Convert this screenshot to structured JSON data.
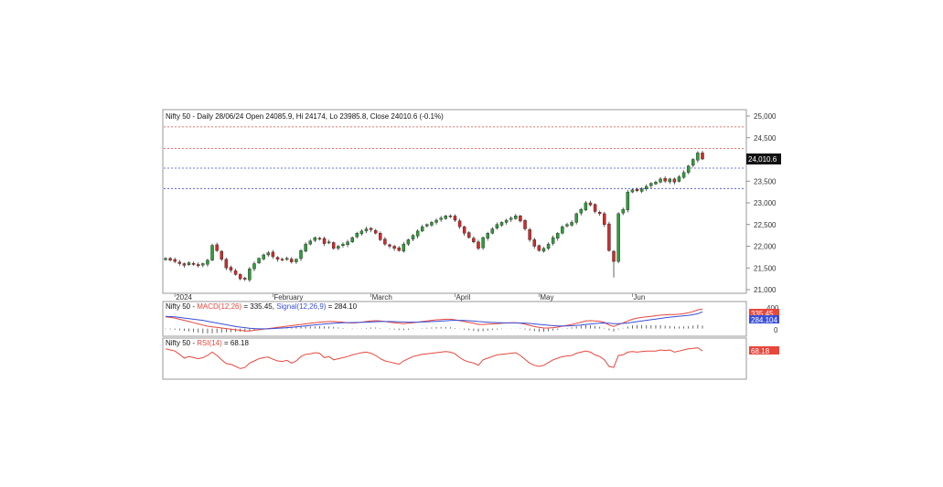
{
  "chart_data": [
    {
      "type": "candlestick",
      "header": "Nifty 50 - Daily 28/06/24 Open 24085.9, Hi 24174, Lo 23985.8, Close 24010.6 (-0.1%)",
      "y_ticks": [
        "25,000",
        "24,500",
        "24,000",
        "23,500",
        "23,000",
        "22,500",
        "22,000",
        "21,500",
        "21,000"
      ],
      "ylim": [
        21000,
        25000
      ],
      "x_labels": [
        "2024",
        "February",
        "March",
        "April",
        "May",
        "Jun"
      ],
      "last_price_label": "24,010.6",
      "reference_lines": [
        {
          "value": 24750,
          "color": "#e8473c",
          "style": "dashed"
        },
        {
          "value": 24250,
          "color": "#e8473c",
          "style": "dashed"
        },
        {
          "value": 23800,
          "color": "#3a4fd8",
          "style": "dashed"
        },
        {
          "value": 23330,
          "color": "#3a4fd8",
          "style": "dashed"
        }
      ],
      "up_color": "#2e9e3a",
      "down_color": "#d42a2a",
      "close_series": [
        21720,
        21680,
        21650,
        21600,
        21560,
        21620,
        21580,
        21550,
        21600,
        21680,
        22020,
        21900,
        21700,
        21500,
        21450,
        21350,
        21250,
        21240,
        21480,
        21600,
        21720,
        21800,
        21850,
        21760,
        21700,
        21680,
        21720,
        21640,
        21700,
        21900,
        22050,
        22120,
        22200,
        22180,
        22060,
        22100,
        21950,
        22000,
        22050,
        22100,
        22200,
        22300,
        22350,
        22400,
        22380,
        22300,
        22150,
        22050,
        22000,
        21950,
        21900,
        22050,
        22150,
        22250,
        22350,
        22450,
        22500,
        22550,
        22600,
        22650,
        22700,
        22680,
        22600,
        22450,
        22300,
        22200,
        22100,
        21950,
        22200,
        22300,
        22400,
        22500,
        22550,
        22600,
        22650,
        22700,
        22580,
        22400,
        22150,
        22000,
        21900,
        21950,
        22050,
        22200,
        22300,
        22450,
        22500,
        22550,
        22750,
        22850,
        23000,
        22950,
        22800,
        22750,
        22500,
        21900,
        21650,
        22750,
        22850,
        23250,
        23300,
        23280,
        23320,
        23380,
        23450,
        23480,
        23550,
        23500,
        23550,
        23480,
        23600,
        23700,
        23850,
        24000,
        24150,
        24010
      ],
      "series": [
        {
          "name": "MACD(12,26)",
          "value_label": "335.45",
          "color": "#e8473c"
        },
        {
          "name": "Signal(12,26,9)",
          "value_label": "284.10",
          "color": "#3a4fd8"
        }
      ]
    },
    {
      "type": "line",
      "header_prefix": "Nifty 50 - ",
      "series": [
        {
          "name": "MACD(12,26)",
          "value_label": "335.45",
          "color": "#e8473c",
          "values": [
            200,
            190,
            180,
            160,
            140,
            120,
            100,
            80,
            60,
            40,
            30,
            20,
            10,
            0,
            -10,
            -20,
            -30,
            -40,
            -40,
            -30,
            -20,
            -10,
            0,
            10,
            20,
            30,
            40,
            50,
            60,
            70,
            80,
            90,
            100,
            110,
            115,
            120,
            120,
            115,
            110,
            100,
            95,
            100,
            110,
            120,
            130,
            135,
            130,
            120,
            110,
            100,
            90,
            85,
            90,
            100,
            110,
            120,
            130,
            140,
            150,
            155,
            160,
            160,
            150,
            135,
            120,
            105,
            90,
            70,
            70,
            75,
            80,
            85,
            90,
            95,
            100,
            100,
            90,
            75,
            55,
            35,
            20,
            10,
            10,
            15,
            25,
            40,
            55,
            70,
            90,
            110,
            130,
            135,
            130,
            125,
            105,
            60,
            35,
            70,
            95,
            130,
            160,
            180,
            190,
            200,
            210,
            220,
            230,
            235,
            240,
            240,
            245,
            255,
            270,
            290,
            320,
            335
          ]
        },
        {
          "name": "Signal(12,26,9)",
          "value_label": "284.104",
          "color": "#3a4fd8",
          "values": [
            210,
            205,
            200,
            190,
            180,
            170,
            160,
            150,
            140,
            125,
            110,
            95,
            80,
            65,
            50,
            35,
            25,
            15,
            5,
            0,
            -5,
            -5,
            -5,
            0,
            5,
            10,
            15,
            22,
            30,
            38,
            45,
            55,
            62,
            70,
            78,
            85,
            92,
            96,
            100,
            102,
            103,
            104,
            106,
            109,
            113,
            117,
            120,
            121,
            120,
            118,
            115,
            112,
            110,
            109,
            110,
            112,
            115,
            120,
            124,
            128,
            133,
            138,
            140,
            140,
            138,
            134,
            128,
            121,
            115,
            110,
            105,
            101,
            98,
            97,
            97,
            97,
            96,
            93,
            87,
            80,
            72,
            64,
            56,
            50,
            46,
            45,
            46,
            49,
            54,
            61,
            70,
            78,
            86,
            93,
            95,
            90,
            85,
            85,
            89,
            96,
            106,
            118,
            130,
            141,
            152,
            163,
            174,
            185,
            195,
            203,
            211,
            219,
            227,
            238,
            255,
            284
          ]
        }
      ],
      "zero_label": "0",
      "top_label": "400",
      "badge_red": "335.45",
      "badge_blue": "284.104"
    },
    {
      "type": "line",
      "header_prefix": "Nifty 50 - ",
      "series": [
        {
          "name": "RSI(14)",
          "value_label": "68.18",
          "color": "#e8473c",
          "values": [
            72,
            70,
            68,
            62,
            55,
            58,
            56,
            54,
            56,
            60,
            66,
            60,
            52,
            45,
            44,
            40,
            36,
            38,
            46,
            50,
            54,
            56,
            57,
            53,
            50,
            49,
            51,
            46,
            50,
            58,
            62,
            63,
            65,
            64,
            56,
            58,
            52,
            54,
            56,
            58,
            61,
            63,
            65,
            66,
            64,
            60,
            54,
            50,
            48,
            46,
            44,
            50,
            54,
            58,
            60,
            62,
            63,
            64,
            65,
            66,
            67,
            66,
            63,
            56,
            51,
            48,
            46,
            42,
            52,
            55,
            58,
            61,
            62,
            63,
            64,
            65,
            60,
            53,
            46,
            42,
            40,
            42,
            47,
            52,
            55,
            58,
            59,
            60,
            64,
            66,
            68,
            66,
            61,
            58,
            52,
            40,
            38,
            60,
            61,
            66,
            67,
            66,
            67,
            68,
            68,
            68,
            70,
            69,
            70,
            66,
            68,
            70,
            72,
            73,
            74,
            68.18
          ]
        }
      ],
      "badge_red": "68.18"
    }
  ]
}
